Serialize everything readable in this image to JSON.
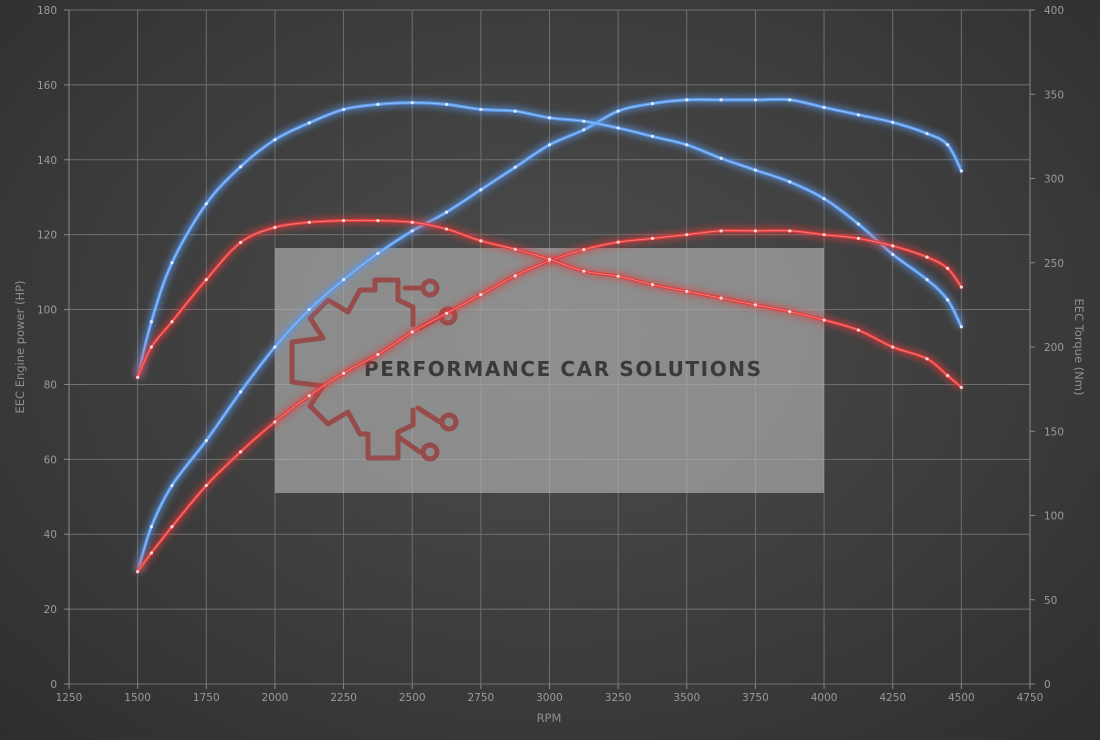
{
  "chart_data": {
    "type": "line",
    "xlabel": "RPM",
    "ylabel_left": "EEC Engine power (HP)",
    "ylabel_right": "EEC Torque (Nm)",
    "xlim": [
      1250,
      4750
    ],
    "ylim_left": [
      0,
      180
    ],
    "ylim_right": [
      0,
      400
    ],
    "x_ticks": [
      1250,
      1500,
      1750,
      2000,
      2250,
      2500,
      2750,
      3000,
      3250,
      3500,
      3750,
      4000,
      4250,
      4500,
      4750
    ],
    "y_ticks_left": [
      0,
      20,
      40,
      60,
      80,
      100,
      120,
      140,
      160,
      180
    ],
    "y_ticks_right": [
      0,
      50,
      100,
      150,
      200,
      250,
      300,
      350,
      400
    ],
    "grid": true,
    "series": [
      {
        "color": "#5b9bf0",
        "axis": "left",
        "points": [
          [
            1500,
            30
          ],
          [
            1550,
            42
          ],
          [
            1625,
            53
          ],
          [
            1750,
            65
          ],
          [
            1875,
            78
          ],
          [
            2000,
            90
          ],
          [
            2125,
            100
          ],
          [
            2250,
            108
          ],
          [
            2375,
            115
          ],
          [
            2500,
            121
          ],
          [
            2625,
            126
          ],
          [
            2750,
            132
          ],
          [
            2875,
            138
          ],
          [
            3000,
            144
          ],
          [
            3125,
            148
          ],
          [
            3250,
            153
          ],
          [
            3375,
            155
          ],
          [
            3500,
            156
          ],
          [
            3625,
            156
          ],
          [
            3750,
            156
          ],
          [
            3875,
            156
          ],
          [
            4000,
            154
          ],
          [
            4125,
            152
          ],
          [
            4250,
            150
          ],
          [
            4375,
            147
          ],
          [
            4450,
            144
          ],
          [
            4500,
            137
          ]
        ]
      },
      {
        "color": "#5b9bf0",
        "axis": "right",
        "points": [
          [
            1500,
            182
          ],
          [
            1550,
            215
          ],
          [
            1625,
            250
          ],
          [
            1750,
            285
          ],
          [
            1875,
            307
          ],
          [
            2000,
            323
          ],
          [
            2125,
            333
          ],
          [
            2250,
            341
          ],
          [
            2375,
            344
          ],
          [
            2500,
            345
          ],
          [
            2625,
            344
          ],
          [
            2750,
            341
          ],
          [
            2875,
            340
          ],
          [
            3000,
            336
          ],
          [
            3125,
            334
          ],
          [
            3250,
            330
          ],
          [
            3375,
            325
          ],
          [
            3500,
            320
          ],
          [
            3625,
            312
          ],
          [
            3750,
            305
          ],
          [
            3875,
            298
          ],
          [
            4000,
            288
          ],
          [
            4125,
            273
          ],
          [
            4250,
            255
          ],
          [
            4375,
            240
          ],
          [
            4450,
            228
          ],
          [
            4500,
            212
          ]
        ]
      },
      {
        "color": "#e23a3a",
        "axis": "left",
        "points": [
          [
            1500,
            30
          ],
          [
            1550,
            35
          ],
          [
            1625,
            42
          ],
          [
            1750,
            53
          ],
          [
            1875,
            62
          ],
          [
            2000,
            70
          ],
          [
            2125,
            77
          ],
          [
            2250,
            83
          ],
          [
            2375,
            88
          ],
          [
            2500,
            94
          ],
          [
            2625,
            99
          ],
          [
            2750,
            104
          ],
          [
            2875,
            109
          ],
          [
            3000,
            113
          ],
          [
            3125,
            116
          ],
          [
            3250,
            118
          ],
          [
            3375,
            119
          ],
          [
            3500,
            120
          ],
          [
            3625,
            121
          ],
          [
            3750,
            121
          ],
          [
            3875,
            121
          ],
          [
            4000,
            120
          ],
          [
            4125,
            119
          ],
          [
            4250,
            117
          ],
          [
            4375,
            114
          ],
          [
            4450,
            111
          ],
          [
            4500,
            106
          ]
        ]
      },
      {
        "color": "#e23a3a",
        "axis": "right",
        "points": [
          [
            1500,
            182
          ],
          [
            1550,
            200
          ],
          [
            1625,
            215
          ],
          [
            1750,
            240
          ],
          [
            1875,
            262
          ],
          [
            2000,
            271
          ],
          [
            2125,
            274
          ],
          [
            2250,
            275
          ],
          [
            2375,
            275
          ],
          [
            2500,
            274
          ],
          [
            2625,
            270
          ],
          [
            2750,
            263
          ],
          [
            2875,
            258
          ],
          [
            3000,
            252
          ],
          [
            3125,
            245
          ],
          [
            3250,
            242
          ],
          [
            3375,
            237
          ],
          [
            3500,
            233
          ],
          [
            3625,
            229
          ],
          [
            3750,
            225
          ],
          [
            3875,
            221
          ],
          [
            4000,
            216
          ],
          [
            4125,
            210
          ],
          [
            4250,
            200
          ],
          [
            4375,
            193
          ],
          [
            4450,
            183
          ],
          [
            4500,
            176
          ]
        ]
      }
    ]
  },
  "watermark": {
    "text": "PERFORMANCE CAR SOLUTIONS",
    "icon": "gear-circuit-logo-icon",
    "icon_color": "#9a3a3a",
    "panel_color": "#b4b4b4"
  }
}
